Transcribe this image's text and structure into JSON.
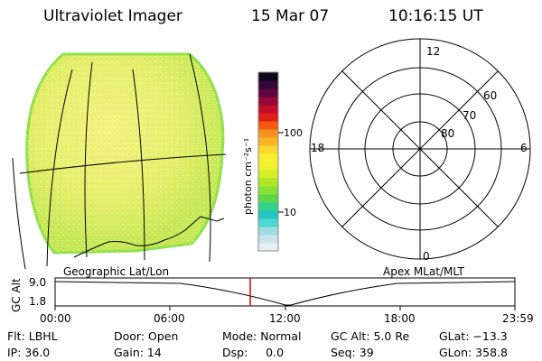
{
  "header": {
    "instrument": "Ultraviolet Imager",
    "date": "15 Mar 07",
    "time": "10:16:15 UT"
  },
  "colorbar": {
    "unit_label": "photon cm⁻²s⁻¹",
    "tick_100": "100",
    "tick_10": "10",
    "colors": [
      "#e9eef0",
      "#c8e4ea",
      "#a0dce2",
      "#4ed6d2",
      "#22c8c0",
      "#36d08a",
      "#5ed64c",
      "#88e036",
      "#b0e62a",
      "#d4ee2a",
      "#eef030",
      "#f6f02e",
      "#fad830",
      "#fab426",
      "#f6921c",
      "#f05a12",
      "#e0201a",
      "#c00e2a",
      "#92083a",
      "#60063e",
      "#300838",
      "#10061e"
    ]
  },
  "left_panel": {
    "caption": "Geographic Lat/Lon",
    "disk_fill": "#e8f070",
    "disk_edge": "#8ee04c"
  },
  "right_panel": {
    "caption": "Apex MLat/MLT",
    "mlt_top": "12",
    "mlt_left": "18",
    "mlt_right": "6",
    "mlt_bottom": "0",
    "lat_60": "60",
    "lat_70": "70",
    "lat_80": "80"
  },
  "timeline": {
    "axis_title": "GC Alt",
    "y_top": "9.0",
    "y_bottom": "1.8",
    "x_ticks": [
      "00:00",
      "06:00",
      "12:00",
      "18:00",
      "23:59"
    ],
    "current_time_marker_color": "#e00000"
  },
  "status": {
    "row1": {
      "flt": "Flt: LBHL",
      "door": "Door: Open",
      "mode": "Mode: Normal",
      "gcalt": "GC Alt: 5.0 Re",
      "glat": "GLat: −13.3"
    },
    "row2": {
      "ip": "IP: 36.0",
      "gain": "Gain: 14",
      "dsp": "Dsp:     0.0",
      "seq": "Seq: 39",
      "glon": "GLon: 358.8"
    }
  }
}
